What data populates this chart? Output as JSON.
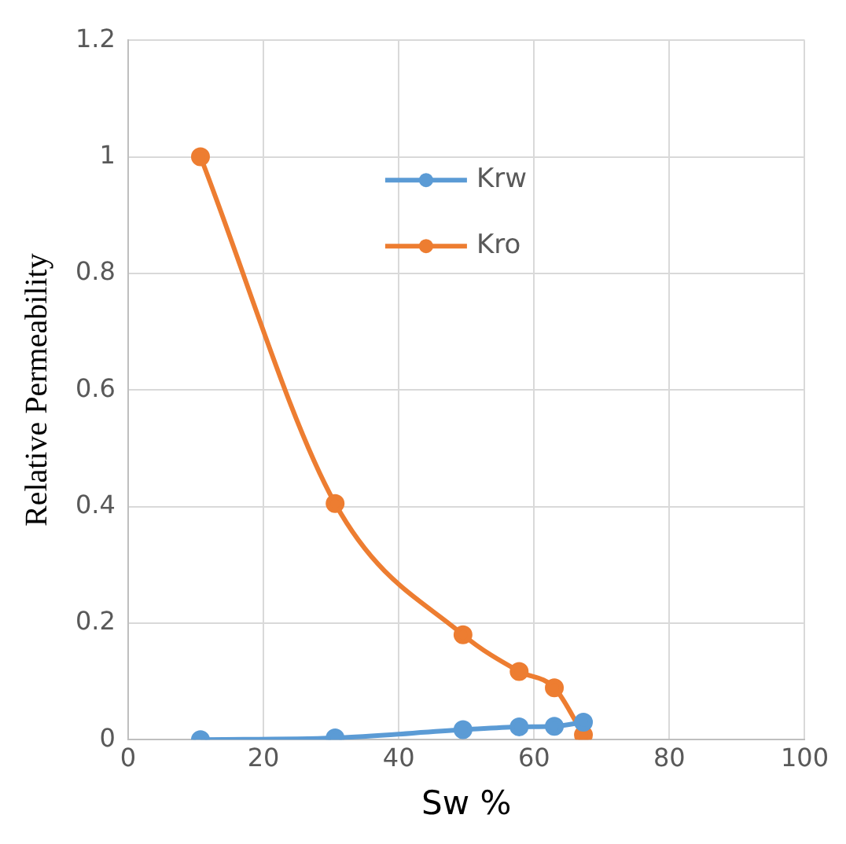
{
  "chart_data": {
    "type": "line",
    "xlabel": "Sw %",
    "ylabel": "Relative Permeability",
    "xlim": [
      0,
      100
    ],
    "xticks": [
      0,
      20,
      40,
      60,
      80,
      100
    ],
    "ylim": [
      0,
      1.2
    ],
    "yticks": [
      0,
      0.2,
      0.4,
      0.6,
      0.8,
      1,
      1.2
    ],
    "grid": true,
    "legend": "top",
    "marker": "circle",
    "line_style": "solid",
    "series": [
      {
        "name": "Krw",
        "color": "#5b9bd5",
        "x": [
          10.7,
          30.6,
          49.5,
          57.8,
          63,
          67.3
        ],
        "values": [
          0,
          0.003,
          0.017,
          0.022,
          0.023,
          0.03
        ]
      },
      {
        "name": "Kro",
        "color": "#ed7d31",
        "x": [
          10.7,
          30.6,
          49.5,
          57.8,
          63,
          67.3
        ],
        "values": [
          1,
          0.405,
          0.18,
          0.117,
          0.089,
          0.008
        ]
      }
    ]
  }
}
